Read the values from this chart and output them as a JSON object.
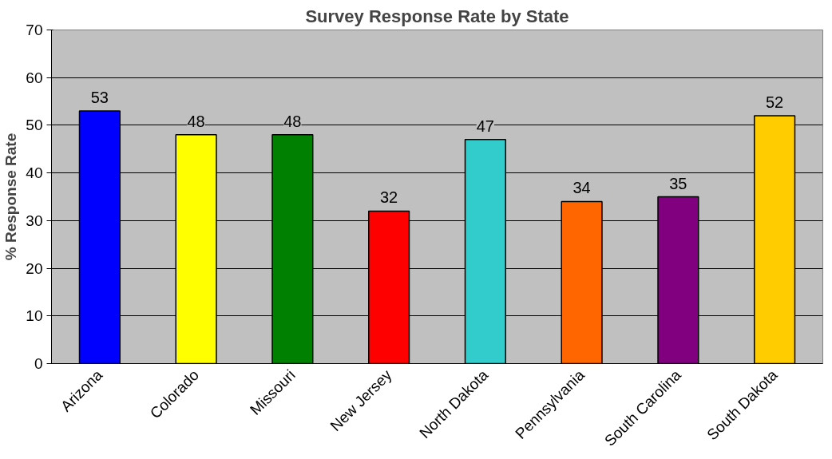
{
  "chart_data": {
    "type": "bar",
    "title": "Survey Response Rate by State",
    "ylabel": "% Response Rate",
    "categories": [
      "Arizona",
      "Colorado",
      "Missouri",
      "New Jersey",
      "North Dakota",
      "Pennsylvania",
      "South Carolina",
      "South Dakota"
    ],
    "values": [
      53,
      48,
      48,
      32,
      47,
      34,
      35,
      52
    ],
    "colors": [
      "#0000ff",
      "#ffff00",
      "#008000",
      "#ff0000",
      "#33cccc",
      "#ff6600",
      "#800080",
      "#ffcc00"
    ],
    "ylim": [
      0,
      70
    ],
    "yticks": [
      0,
      10,
      20,
      30,
      40,
      50,
      60,
      70
    ],
    "grid": "y",
    "data_labels": true
  }
}
